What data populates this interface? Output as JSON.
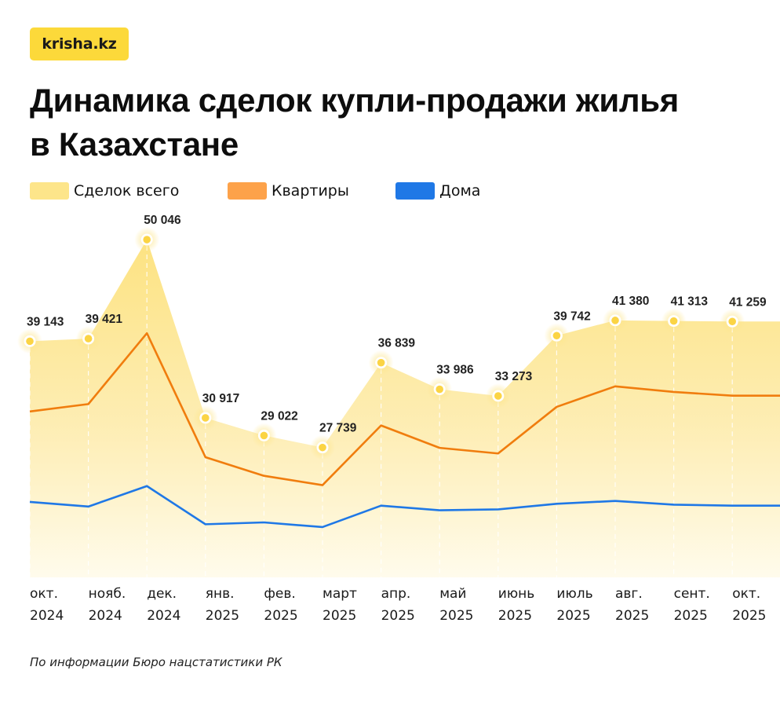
{
  "logo": {
    "text": "krisha.kz"
  },
  "header": {
    "title_line1": "Динамика сделок купли-продажи жилья",
    "title_line2": "в Казахстане"
  },
  "legend": [
    {
      "label": "Сделок всего",
      "color": "#fde58a"
    },
    {
      "label": "Квартиры",
      "color": "#fda24a"
    },
    {
      "label": "Дома",
      "color": "#1f78e6"
    }
  ],
  "source": "По информации Бюро нацстатистики РК",
  "chart_data": {
    "type": "line",
    "title": "Динамика сделок купли-продажи жилья в Казахстане",
    "xlabel": "",
    "ylabel": "",
    "categories": [
      {
        "month": "окт.",
        "year": "2024"
      },
      {
        "month": "нояб.",
        "year": "2024"
      },
      {
        "month": "дек.",
        "year": "2024"
      },
      {
        "month": "янв.",
        "year": "2025"
      },
      {
        "month": "фев.",
        "year": "2025"
      },
      {
        "month": "март",
        "year": "2025"
      },
      {
        "month": "апр.",
        "year": "2025"
      },
      {
        "month": "май",
        "year": "2025"
      },
      {
        "month": "июнь",
        "year": "2025"
      },
      {
        "month": "июль",
        "year": "2025"
      },
      {
        "month": "авг.",
        "year": "2025"
      },
      {
        "month": "сент.",
        "year": "2025"
      },
      {
        "month": "окт.",
        "year": "2025"
      }
    ],
    "series": [
      {
        "name": "Сделок всего",
        "kind": "area",
        "color": "#fde58a",
        "values": [
          39143,
          39421,
          50046,
          30917,
          29022,
          27739,
          36839,
          33986,
          33273,
          39742,
          41380,
          41313,
          41259
        ],
        "labels": [
          "39 143",
          "39 421",
          "50 046",
          "30 917",
          "29 022",
          "27 739",
          "36 839",
          "33 986",
          "33 273",
          "39 742",
          "41 380",
          "41 313",
          "41 259"
        ]
      },
      {
        "name": "Квартиры",
        "kind": "line",
        "color": "#f07d0e",
        "values": [
          31600,
          32400,
          40000,
          26700,
          24700,
          23700,
          30100,
          27700,
          27100,
          32100,
          34300,
          33700,
          33300
        ]
      },
      {
        "name": "Дома",
        "kind": "line",
        "color": "#1f78e6",
        "values": [
          21900,
          21400,
          23600,
          19500,
          19700,
          19200,
          21500,
          21000,
          21100,
          21700,
          22000,
          21600,
          21500
        ]
      }
    ],
    "ylim": [
      13800,
      53000
    ],
    "grid": "vertical dashed at each month",
    "legend_position": "top-left"
  }
}
